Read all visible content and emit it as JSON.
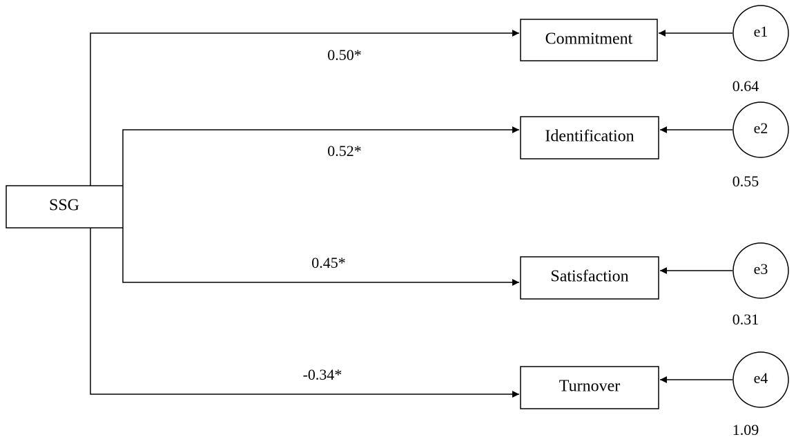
{
  "source": {
    "label": "SSG"
  },
  "outcomes": [
    {
      "label": "Commitment",
      "coefficient": "0.50*",
      "error": "e1",
      "variance": "0.64"
    },
    {
      "label": "Identification",
      "coefficient": "0.52*",
      "error": "e2",
      "variance": "0.55"
    },
    {
      "label": "Satisfaction",
      "coefficient": "0.45*",
      "error": "e3",
      "variance": "0.31"
    },
    {
      "label": "Turnover",
      "coefficient": "-0.34*",
      "error": "e4",
      "variance": "1.09"
    }
  ],
  "colors": {
    "stroke": "#000000",
    "fill": "#ffffff"
  }
}
